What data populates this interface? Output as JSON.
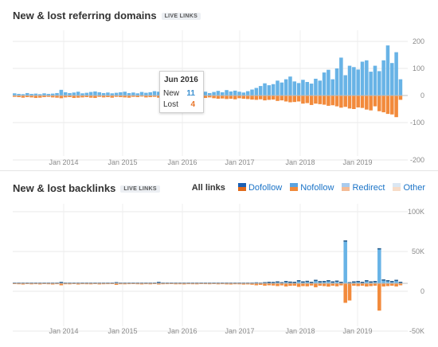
{
  "top": {
    "title": "New & lost referring domains",
    "badge": "LIVE LINKS",
    "tooltip": {
      "date": "Jun 2016",
      "new_label": "New",
      "new_value": "11",
      "lost_label": "Lost",
      "lost_value": "4"
    }
  },
  "bottom": {
    "title": "New & lost backlinks",
    "badge": "LIVE LINKS",
    "legend": {
      "label": "All links",
      "items": [
        {
          "name": "Dofollow",
          "color": "#1a5fb4",
          "color2": "#e06a1b"
        },
        {
          "name": "Nofollow",
          "color": "#5aa3e0",
          "color2": "#f0893a"
        },
        {
          "name": "Redirect",
          "color": "#a9cbee",
          "color2": "#f4bb96"
        },
        {
          "name": "Other",
          "color": "#dbe7f3",
          "color2": "#f7dcc8"
        }
      ]
    }
  },
  "colors": {
    "new": "#68b3e6",
    "lost": "#f28a3b",
    "new_dark": "#2a5c8a"
  },
  "chart_data": [
    {
      "type": "bar",
      "title": "New & lost referring domains",
      "x_tick_labels": [
        "Jan 2014",
        "Jan 2015",
        "Jan 2016",
        "Jan 2017",
        "Jan 2018",
        "Jan 2019"
      ],
      "y_tick_labels": [
        "200",
        "100",
        "0",
        "-100",
        "-200"
      ],
      "ylim": [
        -200,
        200
      ],
      "series": [
        {
          "name": "New",
          "values": [
            8,
            6,
            5,
            9,
            6,
            7,
            5,
            8,
            6,
            7,
            9,
            21,
            12,
            9,
            11,
            14,
            8,
            10,
            13,
            15,
            12,
            9,
            11,
            8,
            10,
            12,
            14,
            9,
            11,
            8,
            13,
            10,
            12,
            16,
            14,
            11,
            9,
            12,
            13,
            10,
            18,
            11,
            15,
            12,
            10,
            14,
            9,
            13,
            17,
            12,
            20,
            15,
            18,
            14,
            11,
            16,
            22,
            28,
            35,
            45,
            38,
            42,
            55,
            48,
            60,
            70,
            52,
            46,
            58,
            50,
            44,
            62,
            55,
            85,
            95,
            60,
            100,
            140,
            75,
            110,
            105,
            96,
            125,
            130,
            88,
            110,
            90,
            130,
            185,
            120,
            160,
            60
          ]
        },
        {
          "name": "Lost",
          "values": [
            -5,
            -6,
            -8,
            -6,
            -7,
            -9,
            -8,
            -6,
            -5,
            -7,
            -8,
            -10,
            -7,
            -6,
            -9,
            -8,
            -7,
            -6,
            -8,
            -9,
            -5,
            -7,
            -6,
            -8,
            -5,
            -6,
            -7,
            -8,
            -5,
            -6,
            -4,
            -7,
            -6,
            -5,
            -8,
            -7,
            -6,
            -5,
            -7,
            -8,
            -6,
            -9,
            -10,
            -8,
            -11,
            -9,
            -7,
            -10,
            -12,
            -11,
            -13,
            -12,
            -14,
            -10,
            -12,
            -13,
            -15,
            -16,
            -14,
            -18,
            -16,
            -15,
            -20,
            -18,
            -22,
            -25,
            -24,
            -22,
            -30,
            -28,
            -35,
            -30,
            -32,
            -34,
            -38,
            -36,
            -40,
            -45,
            -42,
            -48,
            -50,
            -44,
            -46,
            -52,
            -55,
            -40,
            -58,
            -62,
            -68,
            -70,
            -80,
            -16
          ]
        }
      ]
    },
    {
      "type": "bar",
      "title": "New & lost backlinks",
      "x_tick_labels": [
        "Jan 2014",
        "Jan 2015",
        "Jan 2016",
        "Jan 2017",
        "Jan 2018",
        "Jan 2019"
      ],
      "y_tick_labels": [
        "100K",
        "50K",
        "0",
        "-50K"
      ],
      "ylim": [
        -70000,
        100000
      ],
      "series": [
        {
          "name": "New",
          "values": [
            200,
            150,
            300,
            200,
            150,
            250,
            200,
            100,
            300,
            200,
            150,
            1800,
            200,
            150,
            200,
            300,
            150,
            200,
            250,
            300,
            200,
            150,
            200,
            300,
            1500,
            200,
            250,
            200,
            300,
            150,
            200,
            250,
            200,
            300,
            1800,
            200,
            150,
            200,
            250,
            300,
            200,
            150,
            250,
            300,
            200,
            250,
            200,
            300,
            250,
            200,
            300,
            800,
            400,
            350,
            500,
            300,
            600,
            1200,
            900,
            1500,
            2000,
            1800,
            2500,
            1500,
            3000,
            2200,
            2000,
            4000,
            2500,
            3200,
            2000,
            4500,
            2800,
            3000,
            4000,
            2500,
            3500,
            2000,
            55000,
            1500,
            2500,
            3000,
            2000,
            4000,
            2500,
            3000,
            45000,
            5000,
            4000,
            3000,
            4500,
            2000
          ]
        },
        {
          "name": "Lost",
          "values": [
            -1000,
            -1200,
            -1500,
            -1000,
            -1300,
            -1100,
            -1400,
            -1000,
            -1200,
            -1500,
            -1100,
            -2500,
            -1200,
            -1300,
            -1000,
            -1500,
            -1100,
            -1200,
            -1300,
            -1000,
            -1400,
            -1200,
            -1100,
            -1000,
            -2000,
            -1200,
            -1300,
            -1100,
            -1000,
            -1200,
            -1400,
            -1100,
            -1300,
            -1000,
            -1500,
            -1200,
            -1100,
            -1000,
            -1300,
            -1200,
            -1400,
            -1100,
            -1200,
            -1300,
            -1000,
            -1100,
            -1200,
            -1000,
            -1300,
            -1100,
            -1400,
            -1500,
            -1200,
            -1300,
            -1600,
            -1400,
            -1800,
            -2500,
            -2000,
            -3000,
            -2500,
            -2800,
            -3500,
            -2600,
            -4000,
            -3200,
            -3000,
            -4500,
            -3500,
            -3800,
            -2800,
            -5000,
            -3000,
            -3500,
            -4200,
            -3000,
            -3800,
            -2600,
            -25000,
            -22000,
            -3000,
            -3500,
            -3000,
            -4000,
            -3500,
            -3000,
            -35000,
            -4000,
            -3500,
            -3000,
            -4000,
            -2500
          ]
        }
      ]
    }
  ]
}
